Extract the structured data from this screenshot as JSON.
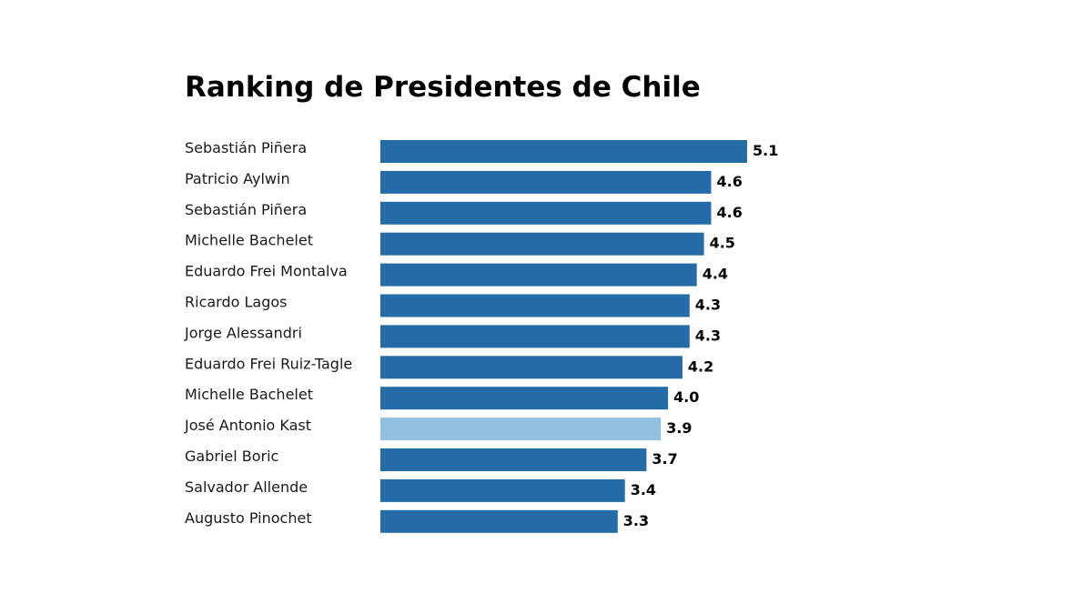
{
  "chart_data": {
    "type": "bar",
    "orientation": "horizontal",
    "title": "Ranking de Presidentes de Chile",
    "categories": [
      "Sebastián Piñera",
      "Patricio Aylwin",
      "Sebastián Piñera",
      "Michelle Bachelet",
      "Eduardo Frei Montalva",
      "Ricardo Lagos",
      "Jorge Alessandri",
      "Eduardo Frei Ruiz-Tagle",
      "Michelle Bachelet",
      "José Antonio Kast",
      "Gabriel Boric",
      "Salvador Allende",
      "Augusto Pinochet"
    ],
    "values": [
      5.1,
      4.6,
      4.6,
      4.5,
      4.4,
      4.3,
      4.3,
      4.2,
      4.0,
      3.9,
      3.7,
      3.4,
      3.3
    ],
    "value_labels": [
      "5.1",
      "4.6",
      "4.6",
      "4.5",
      "4.4",
      "4.3",
      "4.3",
      "4.2",
      "4.0",
      "3.9",
      "3.7",
      "3.4",
      "3.3"
    ],
    "highlighted_category": "José Antonio Kast",
    "xlim": [
      0,
      5.1
    ],
    "grid": false,
    "axes_visible": false,
    "legend": "none",
    "colors": {
      "bar": "#236ca7",
      "highlight": "#92c1e0"
    }
  }
}
